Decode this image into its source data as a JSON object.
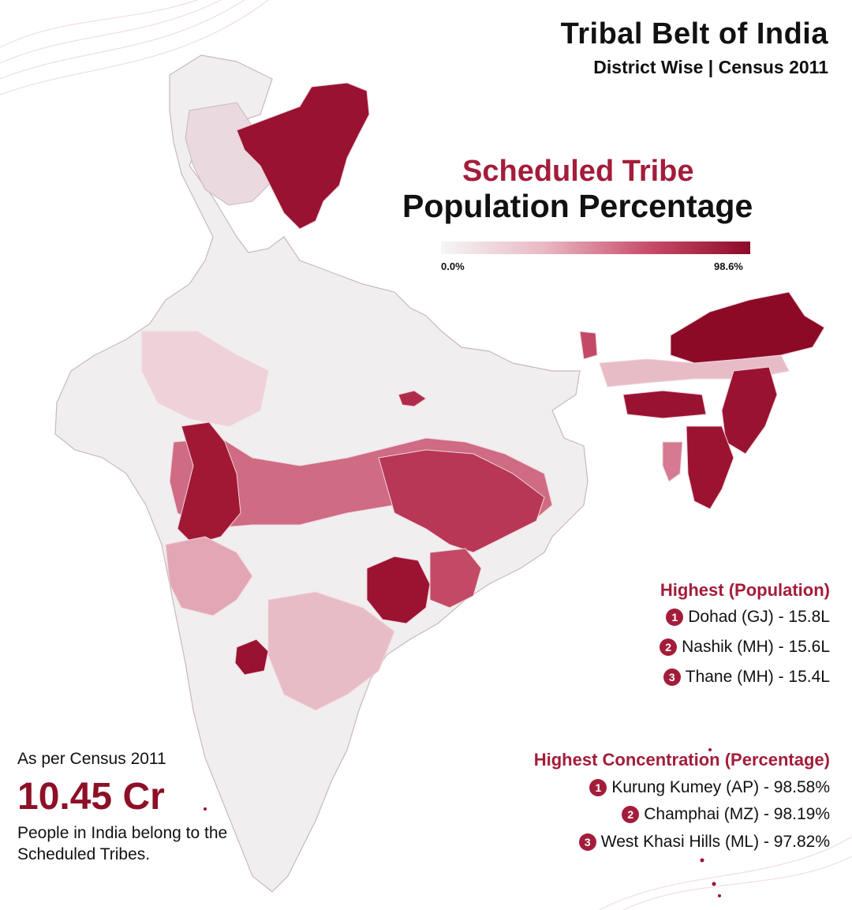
{
  "header": {
    "title": "Tribal Belt of India",
    "subtitle": "District Wise | Census 2011"
  },
  "map_heading": {
    "line1": "Scheduled Tribe",
    "line2": "Population Percentage"
  },
  "legend": {
    "min_label": "0.0%",
    "max_label": "98.6%",
    "min_value": 0.0,
    "max_value": 98.6,
    "color_low": "#f6f6f6",
    "color_high": "#8d0a27"
  },
  "highest_population": {
    "title": "Highest (Population)",
    "items": [
      {
        "rank": "1",
        "text": "Dohad (GJ) - 15.8L"
      },
      {
        "rank": "2",
        "text": "Nashik (MH) - 15.6L"
      },
      {
        "rank": "3",
        "text": "Thane (MH) - 15.4L"
      }
    ]
  },
  "highest_concentration": {
    "title": "Highest Concentration (Percentage)",
    "items": [
      {
        "rank": "1",
        "text": "Kurung Kumey (AP) - 98.58%"
      },
      {
        "rank": "2",
        "text": "Champhai (MZ) - 98.19%"
      },
      {
        "rank": "3",
        "text": "West Khasi Hills (ML) - 97.82%"
      }
    ]
  },
  "summary": {
    "label": "As per Census 2011",
    "number": "10.45 Cr",
    "description": "People in India belong to the Scheduled Tribes."
  },
  "colors": {
    "accent": "#a31d3a",
    "dark": "#8d0a27",
    "base_fill": "#f1eeef",
    "border": "#c9b8bd"
  },
  "map": {
    "regions": [
      {
        "name": "ladakh",
        "level": 0.95
      },
      {
        "name": "kashmir-valley",
        "level": 0.1
      },
      {
        "name": "gujarat-east-tribal",
        "level": 0.85
      },
      {
        "name": "central-tribal-belt",
        "level": 0.55
      },
      {
        "name": "chhattisgarh-south",
        "level": 0.8
      },
      {
        "name": "odisha-tribal",
        "level": 0.6
      },
      {
        "name": "jharkhand",
        "level": 0.5
      },
      {
        "name": "northeast-hills",
        "level": 0.92
      },
      {
        "name": "assam-plains",
        "level": 0.2
      },
      {
        "name": "lakshadweep",
        "level": 0.95
      },
      {
        "name": "south-india",
        "level": 0.1
      }
    ]
  }
}
